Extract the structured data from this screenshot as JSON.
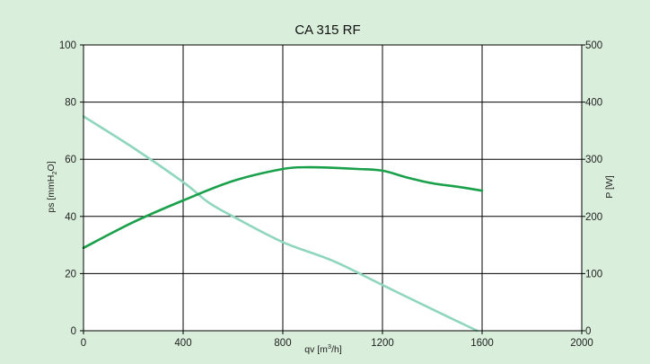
{
  "chart_data": {
    "type": "line",
    "title": "CA 315 RF",
    "xlabel": {
      "prefix": "qv [m",
      "sup": "3",
      "suffix": "/h]"
    },
    "ylabel_left": {
      "prefix": "ps [mmH",
      "sub": "2",
      "suffix": "O]"
    },
    "ylabel_right": "P [W]",
    "xlim": [
      0,
      2000
    ],
    "ylim_left": [
      0,
      100
    ],
    "ylim_right": [
      0,
      500
    ],
    "x_ticks": [
      0,
      400,
      800,
      1200,
      1600,
      2000
    ],
    "y_left_ticks": [
      0,
      20,
      40,
      60,
      80,
      100
    ],
    "y_right_ticks": [
      0,
      100,
      200,
      300,
      400,
      500
    ],
    "grid": true,
    "colors": {
      "background": "#d9eedb",
      "plot_area": "#ffffff",
      "pressure": "#8fd6bd",
      "power": "#1aa04a"
    },
    "series": [
      {
        "axis": "left",
        "color": "#8fd6bd",
        "x": [
          0,
          200,
          400,
          500,
          600,
          800,
          1000,
          1200,
          1400,
          1580
        ],
        "values": [
          75,
          64,
          52,
          45,
          40,
          31,
          24.5,
          16,
          7.5,
          0
        ]
      },
      {
        "axis": "right",
        "color": "#1aa04a",
        "x": [
          0,
          200,
          400,
          600,
          800,
          900,
          1000,
          1100,
          1200,
          1300,
          1400,
          1500,
          1600
        ],
        "values": [
          145,
          190,
          228,
          262,
          283,
          286,
          285,
          283,
          280,
          268,
          258,
          252,
          245
        ]
      }
    ]
  }
}
